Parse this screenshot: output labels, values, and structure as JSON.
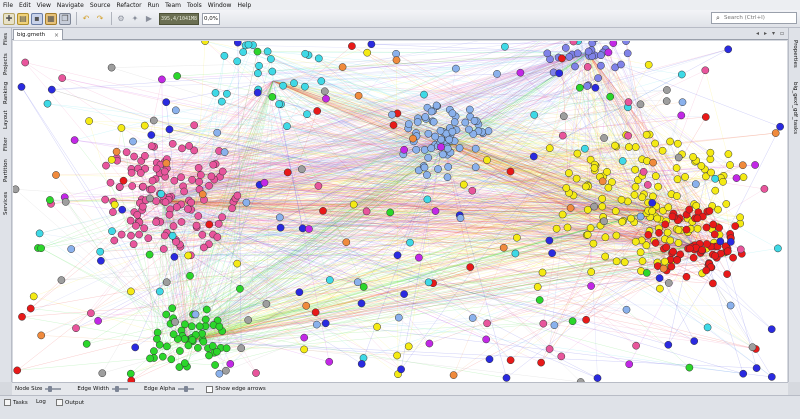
{
  "menu": [
    "File",
    "Edit",
    "View",
    "Navigate",
    "Source",
    "Refactor",
    "Run",
    "Team",
    "Tools",
    "Window",
    "Help"
  ],
  "toolbar": {
    "icons": [
      "new-project-icon",
      "open-project-icon",
      "save-icon",
      "save-all-icon",
      "copy-icon",
      "undo-icon",
      "redo-icon",
      "build-icon",
      "clean-build-icon",
      "run-icon"
    ],
    "memory": "395,4/1041M8",
    "progress": "0,0%"
  },
  "search": {
    "placeholder": "Search (Ctrl+I)"
  },
  "left_tabs": [
    "Files",
    "Projects",
    "Ranking",
    "Layout",
    "Filter",
    "Partition",
    "Services"
  ],
  "right_tabs": [
    "Properties",
    "big_gexf_gdf_tasks"
  ],
  "document_tab": {
    "label": "big.gmeth"
  },
  "controls": {
    "node_size": "Node Size",
    "edge_width": "Edge Width",
    "edge_alpha": "Edge Alpha",
    "show_edge_arrows": "Show edge arrows"
  },
  "status": {
    "tasks": "Tasks",
    "log": "Log",
    "output": "Output"
  },
  "colors": {
    "pink": "#e8559c",
    "blue": "#8ab1ec",
    "periwinkle": "#7f82e8",
    "yellow": "#f4ea14",
    "red": "#e81919",
    "green": "#2bd62b",
    "cyan": "#3ed9e6",
    "orange": "#f08a3c",
    "magenta": "#c228e6"
  }
}
